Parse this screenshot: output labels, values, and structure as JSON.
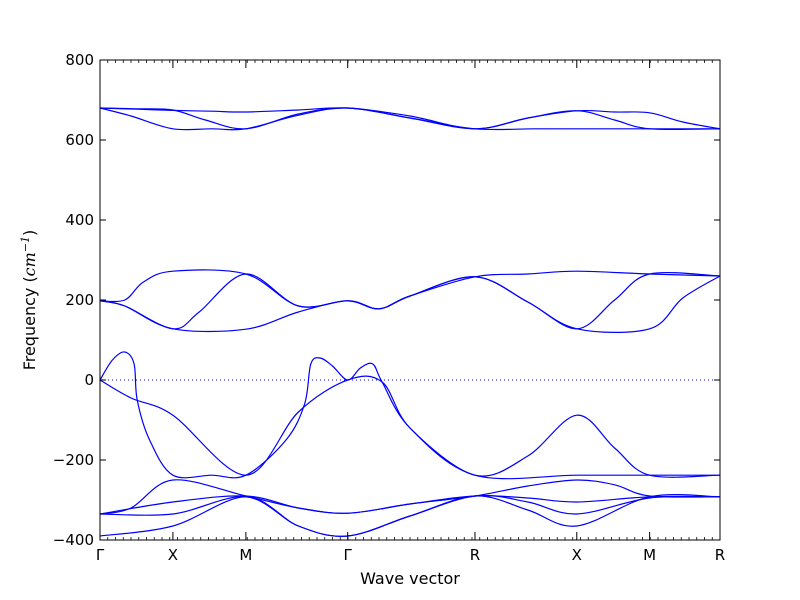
{
  "chart_data": {
    "type": "line",
    "title": "",
    "xlabel": "Wave vector",
    "ylabel_prefix": "Frequency (",
    "ylabel_unit": "cm",
    "ylabel_exp": "−1",
    "ylabel_suffix": ")",
    "ylim": [
      -400,
      800
    ],
    "yticks": [
      -400,
      -200,
      0,
      200,
      400,
      600,
      800
    ],
    "ytick_labels": [
      "−400",
      "−200",
      "0",
      "200",
      "400",
      "600",
      "800"
    ],
    "x_ticks": [
      {
        "label": "Γ",
        "pos": 0.0
      },
      {
        "label": "X",
        "pos": 0.1176
      },
      {
        "label": "M",
        "pos": 0.2353
      },
      {
        "label": "Γ",
        "pos": 0.3995
      },
      {
        "label": "R",
        "pos": 0.6048
      },
      {
        "label": "X",
        "pos": 0.769
      },
      {
        "label": "M",
        "pos": 0.8865
      },
      {
        "label": "R",
        "pos": 1.0
      }
    ],
    "reference_line": {
      "y": 0,
      "style": "dotted"
    },
    "line_color": "#0000ff",
    "grid": false,
    "series": [
      {
        "values": [
          [
            0,
            680
          ],
          [
            0.06,
            677
          ],
          [
            0.1176,
            674
          ],
          [
            0.18,
            672
          ],
          [
            0.2353,
            670
          ],
          [
            0.32,
            675
          ],
          [
            0.3995,
            680
          ],
          [
            0.5,
            660
          ],
          [
            0.6048,
            628
          ],
          [
            0.69,
            655
          ],
          [
            0.769,
            673
          ],
          [
            0.83,
            670
          ],
          [
            0.8865,
            668
          ],
          [
            0.94,
            645
          ],
          [
            1.0,
            628
          ]
        ]
      },
      {
        "values": [
          [
            0,
            680
          ],
          [
            0.06,
            678
          ],
          [
            0.1176,
            675
          ],
          [
            0.17,
            650
          ],
          [
            0.2353,
            628
          ],
          [
            0.32,
            665
          ],
          [
            0.3995,
            680
          ],
          [
            0.5,
            655
          ],
          [
            0.6048,
            628
          ],
          [
            0.69,
            655
          ],
          [
            0.769,
            673
          ],
          [
            0.83,
            650
          ],
          [
            0.8865,
            628
          ],
          [
            1.0,
            628
          ]
        ]
      },
      {
        "values": [
          [
            0,
            680
          ],
          [
            0.05,
            660
          ],
          [
            0.1176,
            628
          ],
          [
            0.18,
            628
          ],
          [
            0.2353,
            628
          ],
          [
            0.32,
            662
          ],
          [
            0.3995,
            680
          ],
          [
            0.5,
            655
          ],
          [
            0.6048,
            628
          ],
          [
            0.7,
            628
          ],
          [
            0.769,
            628
          ],
          [
            0.8865,
            628
          ],
          [
            1.0,
            628
          ]
        ]
      },
      {
        "values": [
          [
            0,
            198
          ],
          [
            0.04,
            200
          ],
          [
            0.07,
            245
          ],
          [
            0.1176,
            272
          ],
          [
            0.2353,
            265
          ],
          [
            0.32,
            185
          ],
          [
            0.3995,
            198
          ],
          [
            0.45,
            178
          ],
          [
            0.5,
            210
          ],
          [
            0.6048,
            258
          ],
          [
            0.69,
            265
          ],
          [
            0.769,
            272
          ],
          [
            0.8865,
            265
          ],
          [
            1.0,
            260
          ]
        ]
      },
      {
        "values": [
          [
            0,
            198
          ],
          [
            0.04,
            185
          ],
          [
            0.1176,
            128
          ],
          [
            0.16,
            170
          ],
          [
            0.2353,
            265
          ],
          [
            0.32,
            185
          ],
          [
            0.3995,
            198
          ],
          [
            0.45,
            178
          ],
          [
            0.5,
            210
          ],
          [
            0.6048,
            258
          ],
          [
            0.69,
            195
          ],
          [
            0.769,
            128
          ],
          [
            0.83,
            200
          ],
          [
            0.8865,
            265
          ],
          [
            1.0,
            260
          ]
        ]
      },
      {
        "values": [
          [
            0,
            198
          ],
          [
            0.04,
            185
          ],
          [
            0.1176,
            128
          ],
          [
            0.2353,
            127
          ],
          [
            0.32,
            170
          ],
          [
            0.3995,
            198
          ],
          [
            0.45,
            178
          ],
          [
            0.5,
            210
          ],
          [
            0.6048,
            258
          ],
          [
            0.69,
            195
          ],
          [
            0.769,
            128
          ],
          [
            0.8865,
            128
          ],
          [
            0.94,
            205
          ],
          [
            1.0,
            260
          ]
        ]
      },
      {
        "values": [
          [
            0,
            0
          ],
          [
            0.02,
            50
          ],
          [
            0.04,
            70
          ],
          [
            0.055,
            40
          ],
          [
            0.06,
            -50
          ],
          [
            0.08,
            -150
          ],
          [
            0.1176,
            -238
          ],
          [
            0.18,
            -238
          ],
          [
            0.2353,
            -238
          ],
          [
            0.3,
            -150
          ],
          [
            0.33,
            -60
          ],
          [
            0.34,
            40
          ],
          [
            0.355,
            55
          ],
          [
            0.375,
            35
          ],
          [
            0.3995,
            0
          ],
          [
            0.42,
            30
          ],
          [
            0.44,
            40
          ],
          [
            0.455,
            -5
          ],
          [
            0.5,
            -120
          ],
          [
            0.6048,
            -238
          ],
          [
            0.769,
            -238
          ],
          [
            0.8865,
            -238
          ],
          [
            1.0,
            -238
          ]
        ]
      },
      {
        "values": [
          [
            0,
            0
          ],
          [
            0.05,
            -45
          ],
          [
            0.1176,
            -88
          ],
          [
            0.2353,
            -238
          ],
          [
            0.32,
            -80
          ],
          [
            0.3995,
            0
          ],
          [
            0.455,
            -5
          ],
          [
            0.5,
            -120
          ],
          [
            0.6048,
            -238
          ],
          [
            0.69,
            -190
          ],
          [
            0.769,
            -88
          ],
          [
            0.83,
            -170
          ],
          [
            0.8865,
            -238
          ],
          [
            1.0,
            -238
          ]
        ]
      },
      {
        "values": [
          [
            0,
            -335
          ],
          [
            0.05,
            -320
          ],
          [
            0.1176,
            -250
          ],
          [
            0.2353,
            -290
          ],
          [
            0.32,
            -320
          ],
          [
            0.3995,
            -333
          ],
          [
            0.5,
            -310
          ],
          [
            0.6048,
            -290
          ],
          [
            0.69,
            -265
          ],
          [
            0.769,
            -250
          ],
          [
            0.83,
            -262
          ],
          [
            0.8865,
            -290
          ],
          [
            1.0,
            -292
          ]
        ]
      },
      {
        "values": [
          [
            0,
            -335
          ],
          [
            0.1176,
            -305
          ],
          [
            0.2353,
            -290
          ],
          [
            0.32,
            -320
          ],
          [
            0.3995,
            -333
          ],
          [
            0.5,
            -310
          ],
          [
            0.6048,
            -290
          ],
          [
            0.69,
            -295
          ],
          [
            0.769,
            -305
          ],
          [
            0.8865,
            -292
          ],
          [
            1.0,
            -292
          ]
        ]
      },
      {
        "values": [
          [
            0,
            -335
          ],
          [
            0.1176,
            -335
          ],
          [
            0.2353,
            -292
          ],
          [
            0.32,
            -365
          ],
          [
            0.3995,
            -390
          ],
          [
            0.5,
            -340
          ],
          [
            0.6048,
            -290
          ],
          [
            0.69,
            -305
          ],
          [
            0.769,
            -335
          ],
          [
            0.8865,
            -295
          ],
          [
            1.0,
            -292
          ]
        ]
      },
      {
        "values": [
          [
            0,
            -390
          ],
          [
            0.1176,
            -365
          ],
          [
            0.2353,
            -292
          ],
          [
            0.32,
            -365
          ],
          [
            0.3995,
            -390
          ],
          [
            0.5,
            -340
          ],
          [
            0.6048,
            -290
          ],
          [
            0.69,
            -325
          ],
          [
            0.769,
            -365
          ],
          [
            0.8865,
            -292
          ],
          [
            1.0,
            -292
          ]
        ]
      }
    ]
  }
}
